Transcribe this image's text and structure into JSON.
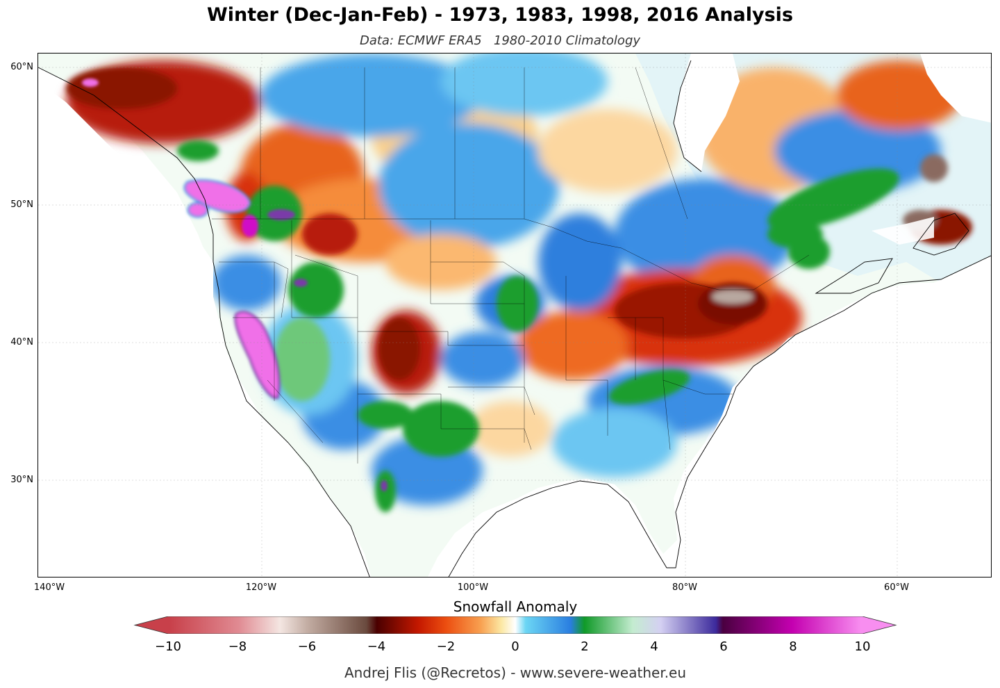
{
  "title": "Winter (Dec-Jan-Feb) - 1973, 1983, 1998, 2016 Analysis",
  "subtitle": "Data: ECMWF ERA5   1980-2010 Climatology",
  "latitude_labels": [
    "60°N",
    "50°N",
    "40°N",
    "30°N"
  ],
  "longitude_labels": [
    "140°W",
    "120°W",
    "100°W",
    "80°W",
    "60°W"
  ],
  "colorbar": {
    "title": "Snowfall Anomaly",
    "ticks": [
      "−10",
      "−8",
      "−6",
      "−4",
      "−2",
      "0",
      "2",
      "4",
      "6",
      "8",
      "10"
    ],
    "range": [
      -10,
      10
    ],
    "stops": [
      {
        "value": -10,
        "color": "#c8404a"
      },
      {
        "value": -8,
        "color": "#e08a92"
      },
      {
        "value": -6.8,
        "color": "#f4e6e2"
      },
      {
        "value": -6,
        "color": "#c2aca2"
      },
      {
        "value": -4.3,
        "color": "#6a4a3e"
      },
      {
        "value": -4,
        "color": "#4a0000"
      },
      {
        "value": -2.8,
        "color": "#c41800"
      },
      {
        "value": -2,
        "color": "#ec4e10"
      },
      {
        "value": -1,
        "color": "#f8a050"
      },
      {
        "value": -0.4,
        "color": "#fce8a4"
      },
      {
        "value": 0,
        "color": "#ffffff"
      },
      {
        "value": 0.3,
        "color": "#6cd6f4"
      },
      {
        "value": 1.6,
        "color": "#2a7ee0"
      },
      {
        "value": 2,
        "color": "#109a28"
      },
      {
        "value": 3.4,
        "color": "#c4ecd0"
      },
      {
        "value": 4.2,
        "color": "#d4d0f2"
      },
      {
        "value": 5.8,
        "color": "#3c2a9c"
      },
      {
        "value": 6,
        "color": "#4a0040"
      },
      {
        "value": 8,
        "color": "#c400b0"
      },
      {
        "value": 10,
        "color": "#f88ef0"
      }
    ]
  },
  "credit": "Andrej Flis (@Recretos) - www.severe-weather.eu",
  "colors": {
    "deficit_strong": "#b71c08",
    "deficit_weak": "#f7a050",
    "surplus_blue": "#3a8ee4",
    "surplus_green": "#1e9e2e",
    "surplus_purple": "#7a3aa8",
    "surplus_magenta": "#f070e8"
  }
}
